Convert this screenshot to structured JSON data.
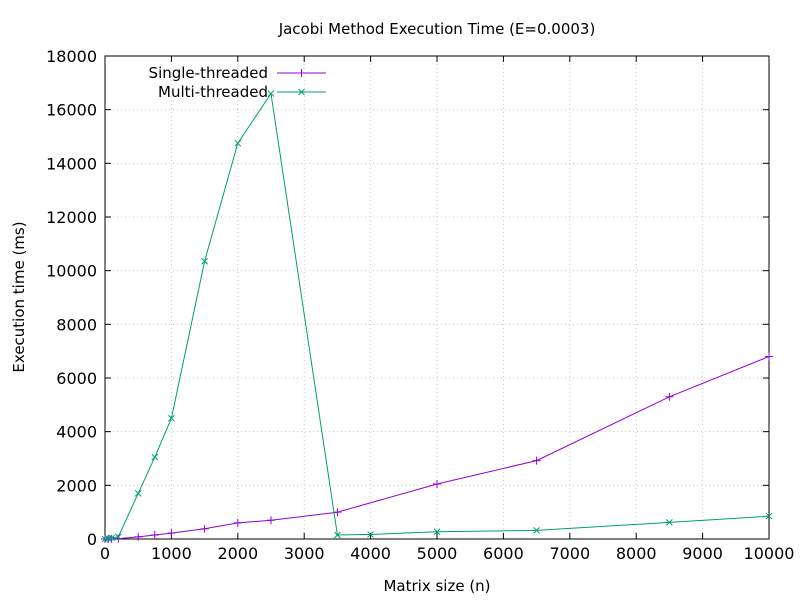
{
  "chart_data": {
    "type": "line",
    "title": "Jacobi Method Execution Time (E=0.0003)",
    "xlabel": "Matrix size (n)",
    "ylabel": "Execution time (ms)",
    "xlim": [
      0,
      10000
    ],
    "ylim": [
      0,
      18000
    ],
    "xticks": [
      0,
      1000,
      2000,
      3000,
      4000,
      5000,
      6000,
      7000,
      8000,
      9000,
      10000
    ],
    "yticks": [
      0,
      2000,
      4000,
      6000,
      8000,
      10000,
      12000,
      14000,
      16000,
      18000
    ],
    "grid": true,
    "legend_position": "top-left",
    "series": [
      {
        "name": "Single-threaded",
        "color": "#9400d3",
        "marker": "plus",
        "x": [
          0,
          50,
          100,
          200,
          500,
          750,
          1000,
          1500,
          2000,
          2500,
          3500,
          5000,
          6500,
          8500,
          10000
        ],
        "y": [
          0,
          2,
          5,
          15,
          80,
          150,
          220,
          380,
          600,
          700,
          1000,
          2050,
          2920,
          5300,
          6800
        ]
      },
      {
        "name": "Multi-threaded",
        "color": "#009e73",
        "marker": "cross",
        "x": [
          0,
          50,
          100,
          200,
          500,
          750,
          1000,
          1500,
          2000,
          2500,
          3500,
          4000,
          5000,
          6500,
          8500,
          10000
        ],
        "y": [
          0,
          20,
          40,
          80,
          1700,
          3050,
          4500,
          10350,
          14750,
          16600,
          150,
          170,
          270,
          320,
          620,
          850
        ]
      }
    ]
  }
}
